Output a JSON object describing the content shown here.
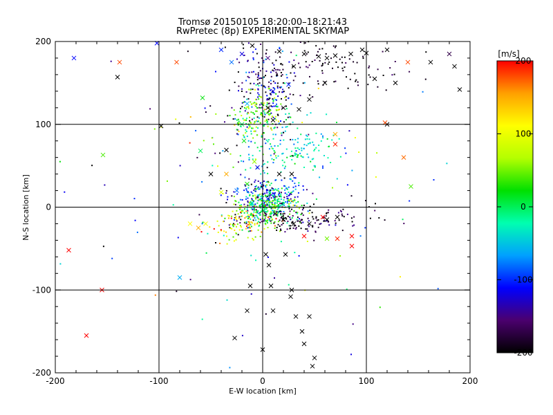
{
  "chart_data": {
    "type": "scatter",
    "title": "Tromsø 20150105 18:20:00–18:21:43",
    "subtitle": "RwPretec (8p) EXPERIMENTAL SKYMAP",
    "xlabel": "E-W location [km]",
    "ylabel": "N-S location [km]",
    "xlim": [
      -200,
      200
    ],
    "ylim": [
      -200,
      200
    ],
    "x_ticks": [
      -200,
      -100,
      0,
      100,
      200
    ],
    "y_ticks": [
      -200,
      -100,
      0,
      100,
      200
    ],
    "grid": true,
    "colorbar": {
      "label": "[m/s]",
      "range": [
        -200,
        200
      ],
      "ticks": [
        -200,
        -100,
        0,
        100,
        200
      ],
      "colors": [
        "#000000",
        "#4b006e",
        "#0000ff",
        "#00a0ff",
        "#00ffb0",
        "#00e000",
        "#b4ff00",
        "#ffff00",
        "#ffa000",
        "#ff0000"
      ]
    },
    "clusters": [
      {
        "cx": 5,
        "cy": 140,
        "sx": 15,
        "sy": 30,
        "n": 200,
        "v": -150,
        "vs": 50
      },
      {
        "cx": -5,
        "cy": 110,
        "sx": 12,
        "sy": 15,
        "n": 150,
        "v": 50,
        "vs": 40
      },
      {
        "cx": 25,
        "cy": 70,
        "sx": 25,
        "sy": 18,
        "n": 160,
        "v": -30,
        "vs": 30
      },
      {
        "cx": 5,
        "cy": 15,
        "sx": 15,
        "sy": 12,
        "n": 200,
        "v": -100,
        "vs": 50
      },
      {
        "cx": 5,
        "cy": 0,
        "sx": 15,
        "sy": 10,
        "n": 300,
        "v": 10,
        "vs": 40
      },
      {
        "cx": 30,
        "cy": -15,
        "sx": 30,
        "sy": 8,
        "n": 160,
        "v": -180,
        "vs": 30
      },
      {
        "cx": -20,
        "cy": -20,
        "sx": 15,
        "sy": 10,
        "n": 100,
        "v": 100,
        "vs": 60
      },
      {
        "cx": 60,
        "cy": 170,
        "sx": 40,
        "sy": 20,
        "n": 120,
        "v": -190,
        "vs": 20
      },
      {
        "cx": 0,
        "cy": 30,
        "sx": 80,
        "sy": 90,
        "n": 150,
        "v": -70,
        "vs": 110
      }
    ],
    "crosses": [
      {
        "x": 120,
        "y": 190,
        "v": -200
      },
      {
        "x": 100,
        "y": 186,
        "v": -200
      },
      {
        "x": 96,
        "y": 190,
        "v": -200
      },
      {
        "x": 85,
        "y": 185,
        "v": -200
      },
      {
        "x": 70,
        "y": 183,
        "v": -200
      },
      {
        "x": 62,
        "y": 180,
        "v": -200
      },
      {
        "x": 54,
        "y": 182,
        "v": -200
      },
      {
        "x": 40,
        "y": 185,
        "v": -200
      },
      {
        "x": 30,
        "y": 170,
        "v": -200
      },
      {
        "x": 162,
        "y": 175,
        "v": -200
      },
      {
        "x": 185,
        "y": 170,
        "v": -200
      },
      {
        "x": 190,
        "y": 142,
        "v": -200
      },
      {
        "x": 128,
        "y": 150,
        "v": -200
      },
      {
        "x": 108,
        "y": 155,
        "v": -200
      },
      {
        "x": 60,
        "y": 150,
        "v": -200
      },
      {
        "x": 45,
        "y": 130,
        "v": -200
      },
      {
        "x": 35,
        "y": 118,
        "v": -200
      },
      {
        "x": -140,
        "y": 157,
        "v": -200
      },
      {
        "x": -98,
        "y": 98,
        "v": -200
      },
      {
        "x": 120,
        "y": 100,
        "v": -200
      },
      {
        "x": 180,
        "y": 185,
        "v": -170
      },
      {
        "x": -182,
        "y": 180,
        "v": -110
      },
      {
        "x": -102,
        "y": 198,
        "v": -110
      },
      {
        "x": -138,
        "y": 175,
        "v": 180
      },
      {
        "x": -83,
        "y": 175,
        "v": 180
      },
      {
        "x": 140,
        "y": 175,
        "v": 180
      },
      {
        "x": 118,
        "y": 102,
        "v": 180
      },
      {
        "x": 136,
        "y": 60,
        "v": 170
      },
      {
        "x": 70,
        "y": 76,
        "v": 190
      },
      {
        "x": 70,
        "y": 88,
        "v": 150
      },
      {
        "x": 143,
        "y": 25,
        "v": 40
      },
      {
        "x": -154,
        "y": 63,
        "v": 40
      },
      {
        "x": -58,
        "y": 132,
        "v": 20
      },
      {
        "x": -187,
        "y": -52,
        "v": 200
      },
      {
        "x": -155,
        "y": -100,
        "v": 200
      },
      {
        "x": -170,
        "y": -155,
        "v": 200
      },
      {
        "x": -62,
        "y": -25,
        "v": 150
      },
      {
        "x": -55,
        "y": -20,
        "v": 100
      },
      {
        "x": -70,
        "y": -20,
        "v": 110
      },
      {
        "x": -80,
        "y": -85,
        "v": -60
      },
      {
        "x": 86,
        "y": -35,
        "v": 200
      },
      {
        "x": 86,
        "y": -47,
        "v": 200
      },
      {
        "x": 72,
        "y": -38,
        "v": 190
      },
      {
        "x": 62,
        "y": -38,
        "v": 50
      },
      {
        "x": 40,
        "y": -35,
        "v": 200
      },
      {
        "x": 58,
        "y": -12,
        "v": 200
      },
      {
        "x": 62,
        "y": -15,
        "v": -200
      },
      {
        "x": 72,
        "y": -12,
        "v": -200
      },
      {
        "x": 45,
        "y": -20,
        "v": -200
      },
      {
        "x": 30,
        "y": -20,
        "v": -200
      },
      {
        "x": 20,
        "y": -15,
        "v": -200
      },
      {
        "x": 3,
        "y": -57,
        "v": -200
      },
      {
        "x": 6,
        "y": -70,
        "v": -200
      },
      {
        "x": 22,
        "y": -57,
        "v": -200
      },
      {
        "x": 8,
        "y": -95,
        "v": -200
      },
      {
        "x": -12,
        "y": -95,
        "v": -200
      },
      {
        "x": 27,
        "y": -108,
        "v": -200
      },
      {
        "x": 28,
        "y": -100,
        "v": -200
      },
      {
        "x": -15,
        "y": -125,
        "v": -200
      },
      {
        "x": 10,
        "y": -125,
        "v": -200
      },
      {
        "x": 32,
        "y": -132,
        "v": -200
      },
      {
        "x": 45,
        "y": -132,
        "v": -200
      },
      {
        "x": 38,
        "y": -150,
        "v": -200
      },
      {
        "x": -27,
        "y": -158,
        "v": -200
      },
      {
        "x": 40,
        "y": -165,
        "v": -200
      },
      {
        "x": 50,
        "y": -182,
        "v": -200
      },
      {
        "x": 0,
        "y": -172,
        "v": -200
      },
      {
        "x": 48,
        "y": -192,
        "v": -200
      },
      {
        "x": -50,
        "y": 40,
        "v": -200
      },
      {
        "x": 16,
        "y": 40,
        "v": -200
      },
      {
        "x": 28,
        "y": 40,
        "v": -200
      },
      {
        "x": -35,
        "y": 40,
        "v": 150
      },
      {
        "x": -35,
        "y": 69,
        "v": -200
      },
      {
        "x": -60,
        "y": 68,
        "v": 0
      },
      {
        "x": 5,
        "y": 120,
        "v": -200
      },
      {
        "x": 20,
        "y": 120,
        "v": -200
      },
      {
        "x": 10,
        "y": 105,
        "v": -200
      },
      {
        "x": -10,
        "y": 195,
        "v": -200
      },
      {
        "x": 5,
        "y": 180,
        "v": -150
      },
      {
        "x": -30,
        "y": 175,
        "v": -80
      },
      {
        "x": -20,
        "y": 185,
        "v": -120
      },
      {
        "x": -40,
        "y": 190,
        "v": -100
      },
      {
        "x": 16,
        "y": 188,
        "v": -200
      },
      {
        "x": -25,
        "y": 20,
        "v": -80
      },
      {
        "x": -40,
        "y": 18,
        "v": 90
      },
      {
        "x": -15,
        "y": 28,
        "v": 30
      },
      {
        "x": -8,
        "y": 55,
        "v": 60
      },
      {
        "x": -5,
        "y": 48,
        "v": -120
      },
      {
        "x": -20,
        "y": 100,
        "v": 0
      },
      {
        "x": -18,
        "y": 80,
        "v": 20
      },
      {
        "x": -15,
        "y": 125,
        "v": -60
      },
      {
        "x": 10,
        "y": 140,
        "v": -120
      },
      {
        "x": 25,
        "y": 148,
        "v": -100
      },
      {
        "x": 5,
        "y": 10,
        "v": -100
      },
      {
        "x": -10,
        "y": 5,
        "v": -40
      },
      {
        "x": 12,
        "y": -8,
        "v": -180
      }
    ]
  }
}
